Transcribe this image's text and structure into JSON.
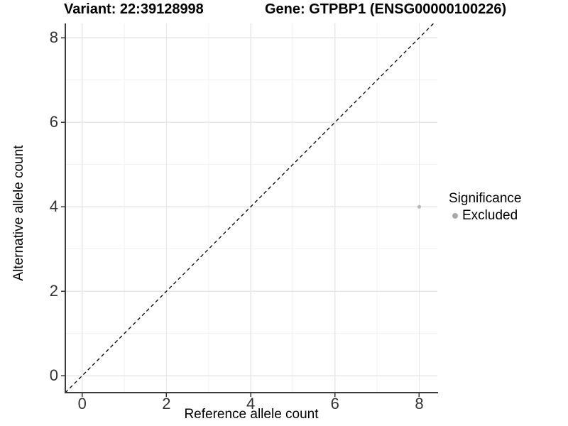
{
  "chart_data": {
    "type": "scatter",
    "title_variant": "Variant: 22:39128998",
    "title_gene": "Gene: GTPBP1 (ENSG00000100226)",
    "xlabel": "Reference allele count",
    "ylabel": "Alternative allele count",
    "x_ticks": [
      0,
      2,
      4,
      6,
      8
    ],
    "y_ticks": [
      0,
      2,
      4,
      6,
      8
    ],
    "x_minor_ticks": [
      1,
      3,
      5,
      7
    ],
    "y_minor_ticks": [
      1,
      3,
      5,
      7
    ],
    "xlim": [
      -0.4,
      8.43
    ],
    "ylim": [
      -0.4,
      8.34
    ],
    "grid": true,
    "identity_line": {
      "style": "dashed",
      "equation": "y = x",
      "color": "#000000"
    },
    "series": [
      {
        "name": "Excluded",
        "color": "#b9b9b9",
        "points": [
          {
            "x": 8,
            "y": 4
          }
        ]
      }
    ],
    "legend": {
      "title": "Significance",
      "position": "right",
      "items": [
        {
          "label": "Excluded",
          "color": "#a8a8a8"
        }
      ]
    },
    "colors": {
      "grid_major": "#e7e7e7",
      "grid_minor": "#f2f2f2",
      "axis_line": "#3c3c3c",
      "tick_mark": "#333333",
      "title_text": "#000000",
      "tick_text": "#333333"
    }
  }
}
